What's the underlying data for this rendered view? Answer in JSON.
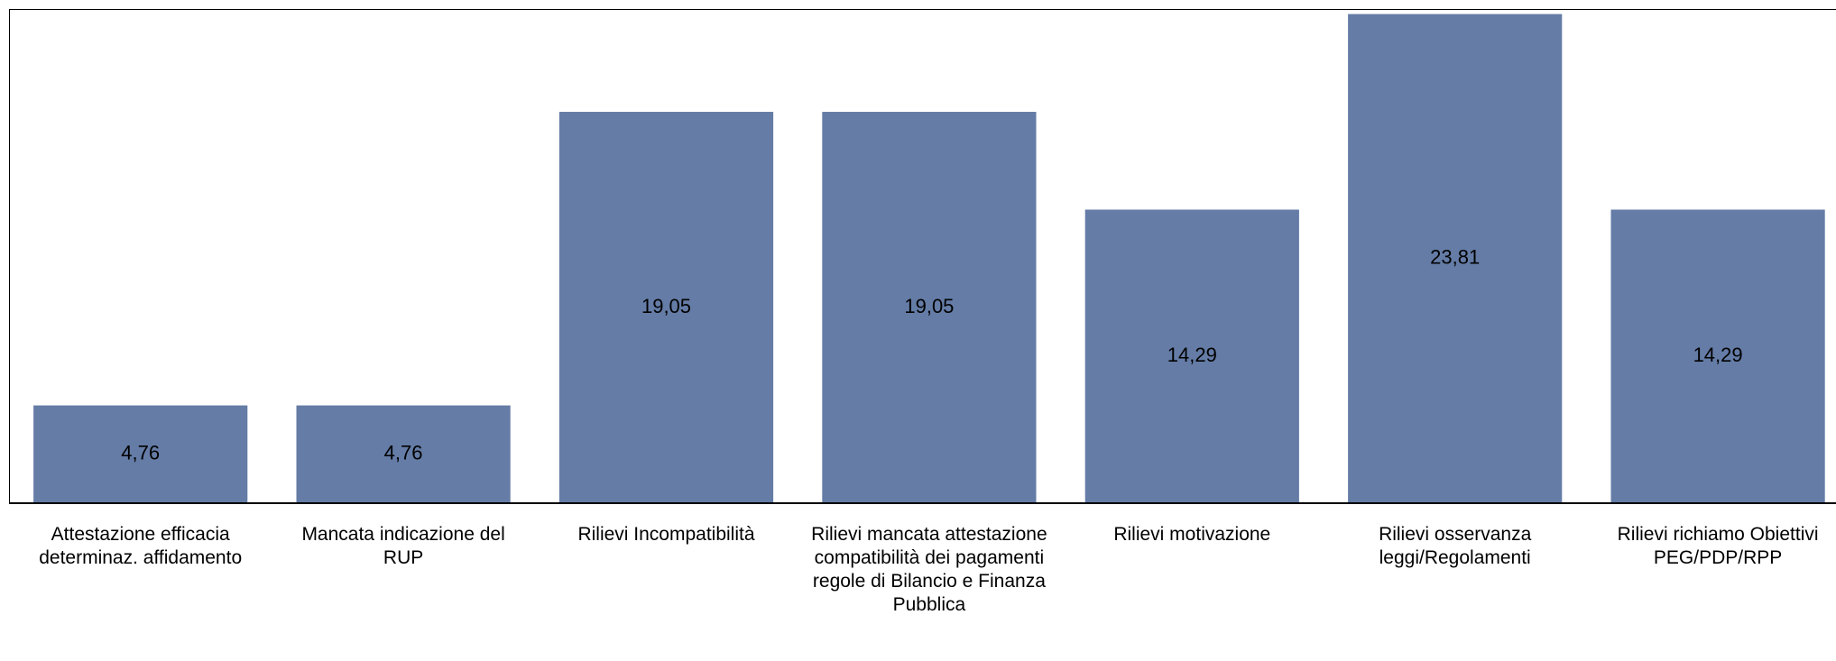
{
  "chart_data": {
    "type": "bar",
    "categories": [
      "Attestazione efficacia determinaz. affidamento",
      "Mancata indicazione del RUP",
      "Rilievi Incompatibilità",
      "Rilievi mancata attestazione compatibilità dei pagamenti regole di Bilancio e Finanza Pubblica",
      "Rilievi motivazione",
      "Rilievi osservanza leggi/Regolamenti",
      "Rilievi richiamo Obiettivi PEG/PDP/RPP"
    ],
    "values": [
      4.76,
      4.76,
      19.05,
      19.05,
      14.29,
      23.81,
      14.29
    ],
    "value_labels": [
      "4,76",
      "4,76",
      "19,05",
      "19,05",
      "14,29",
      "23,81",
      "14,29"
    ],
    "color": "#647ca6"
  }
}
